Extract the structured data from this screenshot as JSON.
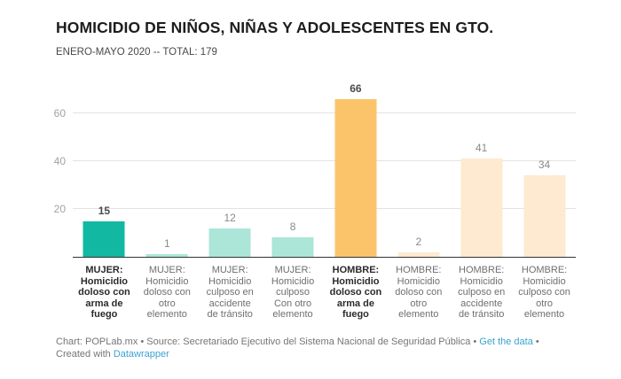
{
  "header": {
    "title": "HOMICIDIO DE NIÑOS, NIÑAS Y ADOLESCENTES EN GTO.",
    "subtitle": "ENERO-MAYO 2020 -- TOTAL: 179"
  },
  "chart_data": {
    "type": "bar",
    "title": "HOMICIDIO DE NIÑOS, NIÑAS Y ADOLESCENTES EN GTO.",
    "subtitle": "ENERO-MAYO 2020 -- TOTAL: 179",
    "xlabel": "",
    "ylabel": "",
    "ylim": [
      0,
      70
    ],
    "y_ticks": [
      20,
      40,
      60
    ],
    "grid": "horizontal",
    "legend": "none",
    "categories": [
      "MUJER:\nHomicidio\ndoloso con\narma de\nfuego",
      "MUJER:\nHomicidio\ndoloso con\notro\nelemento",
      "MUJER:\nHomicidio\nculposo en\naccidente\nde tránsito",
      "MUJER:\nHomicidio\nculposo\nCon otro\nelemento",
      "HOMBRE:\nHomicidio\ndoloso con\narma de\nfuego",
      "HOMBRE:\nHomicidio\ndoloso con\notro\nelemento",
      "HOMBRE:\nHomicidio\nculposo en\naccidente\nde tránsito",
      "HOMBRE:\nHomicidio\nculposo con\notro\nelemento"
    ],
    "values": [
      15,
      1,
      12,
      8,
      66,
      2,
      41,
      34
    ],
    "bar_colors": [
      "#12b8a1",
      "#abe6d8",
      "#abe6d8",
      "#abe6d8",
      "#fbc36a",
      "#fdead0",
      "#fdead0",
      "#fdead0"
    ],
    "emphasized": [
      true,
      false,
      false,
      false,
      true,
      false,
      false,
      false
    ]
  },
  "colors": {
    "accent_teal": "#12b8a1",
    "light_teal": "#abe6d8",
    "accent_orange": "#fbc36a",
    "light_orange": "#fdead0",
    "link_blue": "#3aa3cf",
    "axis_line": "#333333",
    "gridline": "#e3e3e3"
  },
  "footer": {
    "credit_source_text": "Chart: POPLab.mx • Source: Secretariado Ejecutivo del Sistema Nacional de Seguridad Pública • ",
    "get_data_label": "Get the data",
    "after_link_bullet": " •",
    "created_with_text": "Created with ",
    "datawrapper_label": "Datawrapper"
  }
}
